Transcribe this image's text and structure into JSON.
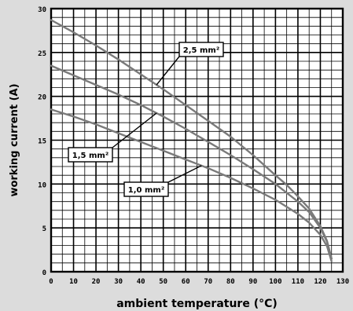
{
  "chart_data": {
    "type": "line",
    "title": "",
    "xlabel": "ambient temperature (°C)",
    "ylabel": "working current (A)",
    "xlim": [
      0,
      130
    ],
    "ylim": [
      0,
      30
    ],
    "x_ticks": [
      0,
      10,
      20,
      30,
      40,
      50,
      60,
      70,
      80,
      90,
      100,
      110,
      120,
      130
    ],
    "y_ticks": [
      0,
      5,
      10,
      15,
      20,
      25,
      30
    ],
    "grid": true,
    "line_color": "#7a7a7a",
    "series": [
      {
        "name": "2,5 mm²",
        "x": [
          0,
          10,
          20,
          30,
          40,
          50,
          60,
          70,
          80,
          90,
          100,
          105,
          110,
          115,
          120,
          123,
          125
        ],
        "y": [
          28.7,
          27.3,
          25.8,
          24.2,
          22.5,
          20.8,
          19.0,
          17.2,
          15.4,
          13.3,
          11.0,
          9.9,
          8.6,
          7.2,
          5.2,
          3.5,
          1.5
        ]
      },
      {
        "name": "1,5 mm²",
        "x": [
          0,
          10,
          20,
          30,
          40,
          50,
          60,
          70,
          80,
          90,
          100,
          110,
          115,
          120,
          123,
          125
        ],
        "y": [
          23.5,
          22.4,
          21.3,
          20.2,
          19.0,
          17.7,
          16.3,
          14.8,
          13.3,
          11.7,
          10.0,
          8.0,
          6.8,
          5.0,
          3.4,
          1.5
        ]
      },
      {
        "name": "1,0 mm²",
        "x": [
          0,
          10,
          20,
          30,
          40,
          50,
          60,
          70,
          80,
          90,
          100,
          110,
          115,
          120,
          123,
          125
        ],
        "y": [
          18.5,
          17.7,
          16.8,
          15.8,
          14.8,
          13.8,
          12.8,
          11.8,
          10.7,
          9.5,
          8.2,
          6.6,
          5.6,
          4.2,
          2.9,
          1.2
        ]
      }
    ],
    "labels": [
      {
        "text": "2,5 mm²",
        "series": 0,
        "anchor_x": 47
      },
      {
        "text": "1,5 mm²",
        "series": 1,
        "anchor_x": 47
      },
      {
        "text": "1,0 mm²",
        "series": 2,
        "anchor_x": 67
      }
    ]
  }
}
